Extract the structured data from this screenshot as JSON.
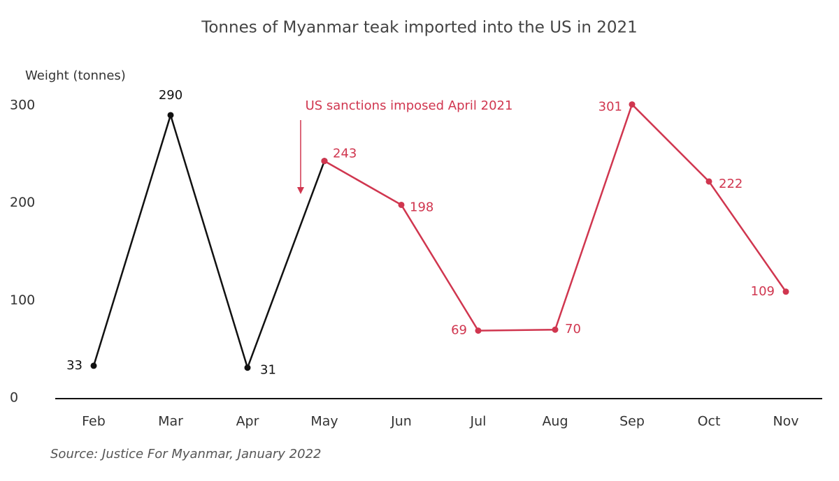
{
  "chart_data": {
    "type": "line",
    "title": "Tonnes of Myanmar teak imported into the US in 2021",
    "y_label": "Weight (tonnes)",
    "source": "Source: Justice For Myanmar, January 2022",
    "annotation": "US sanctions imposed April 2021",
    "categories": [
      "Feb",
      "Mar",
      "Apr",
      "May",
      "Jun",
      "Jul",
      "Aug",
      "Sep",
      "Oct",
      "Nov"
    ],
    "series": [
      {
        "color": "#111111",
        "values": [
          33,
          290,
          31,
          243,
          null,
          null,
          null,
          null,
          null,
          null
        ]
      },
      {
        "color": "#d0364f",
        "values": [
          null,
          null,
          null,
          243,
          198,
          69,
          70,
          301,
          222,
          109
        ]
      }
    ],
    "ylim": [
      0,
      300
    ],
    "yticks": [
      0,
      100,
      200,
      300
    ],
    "grid": false
  }
}
